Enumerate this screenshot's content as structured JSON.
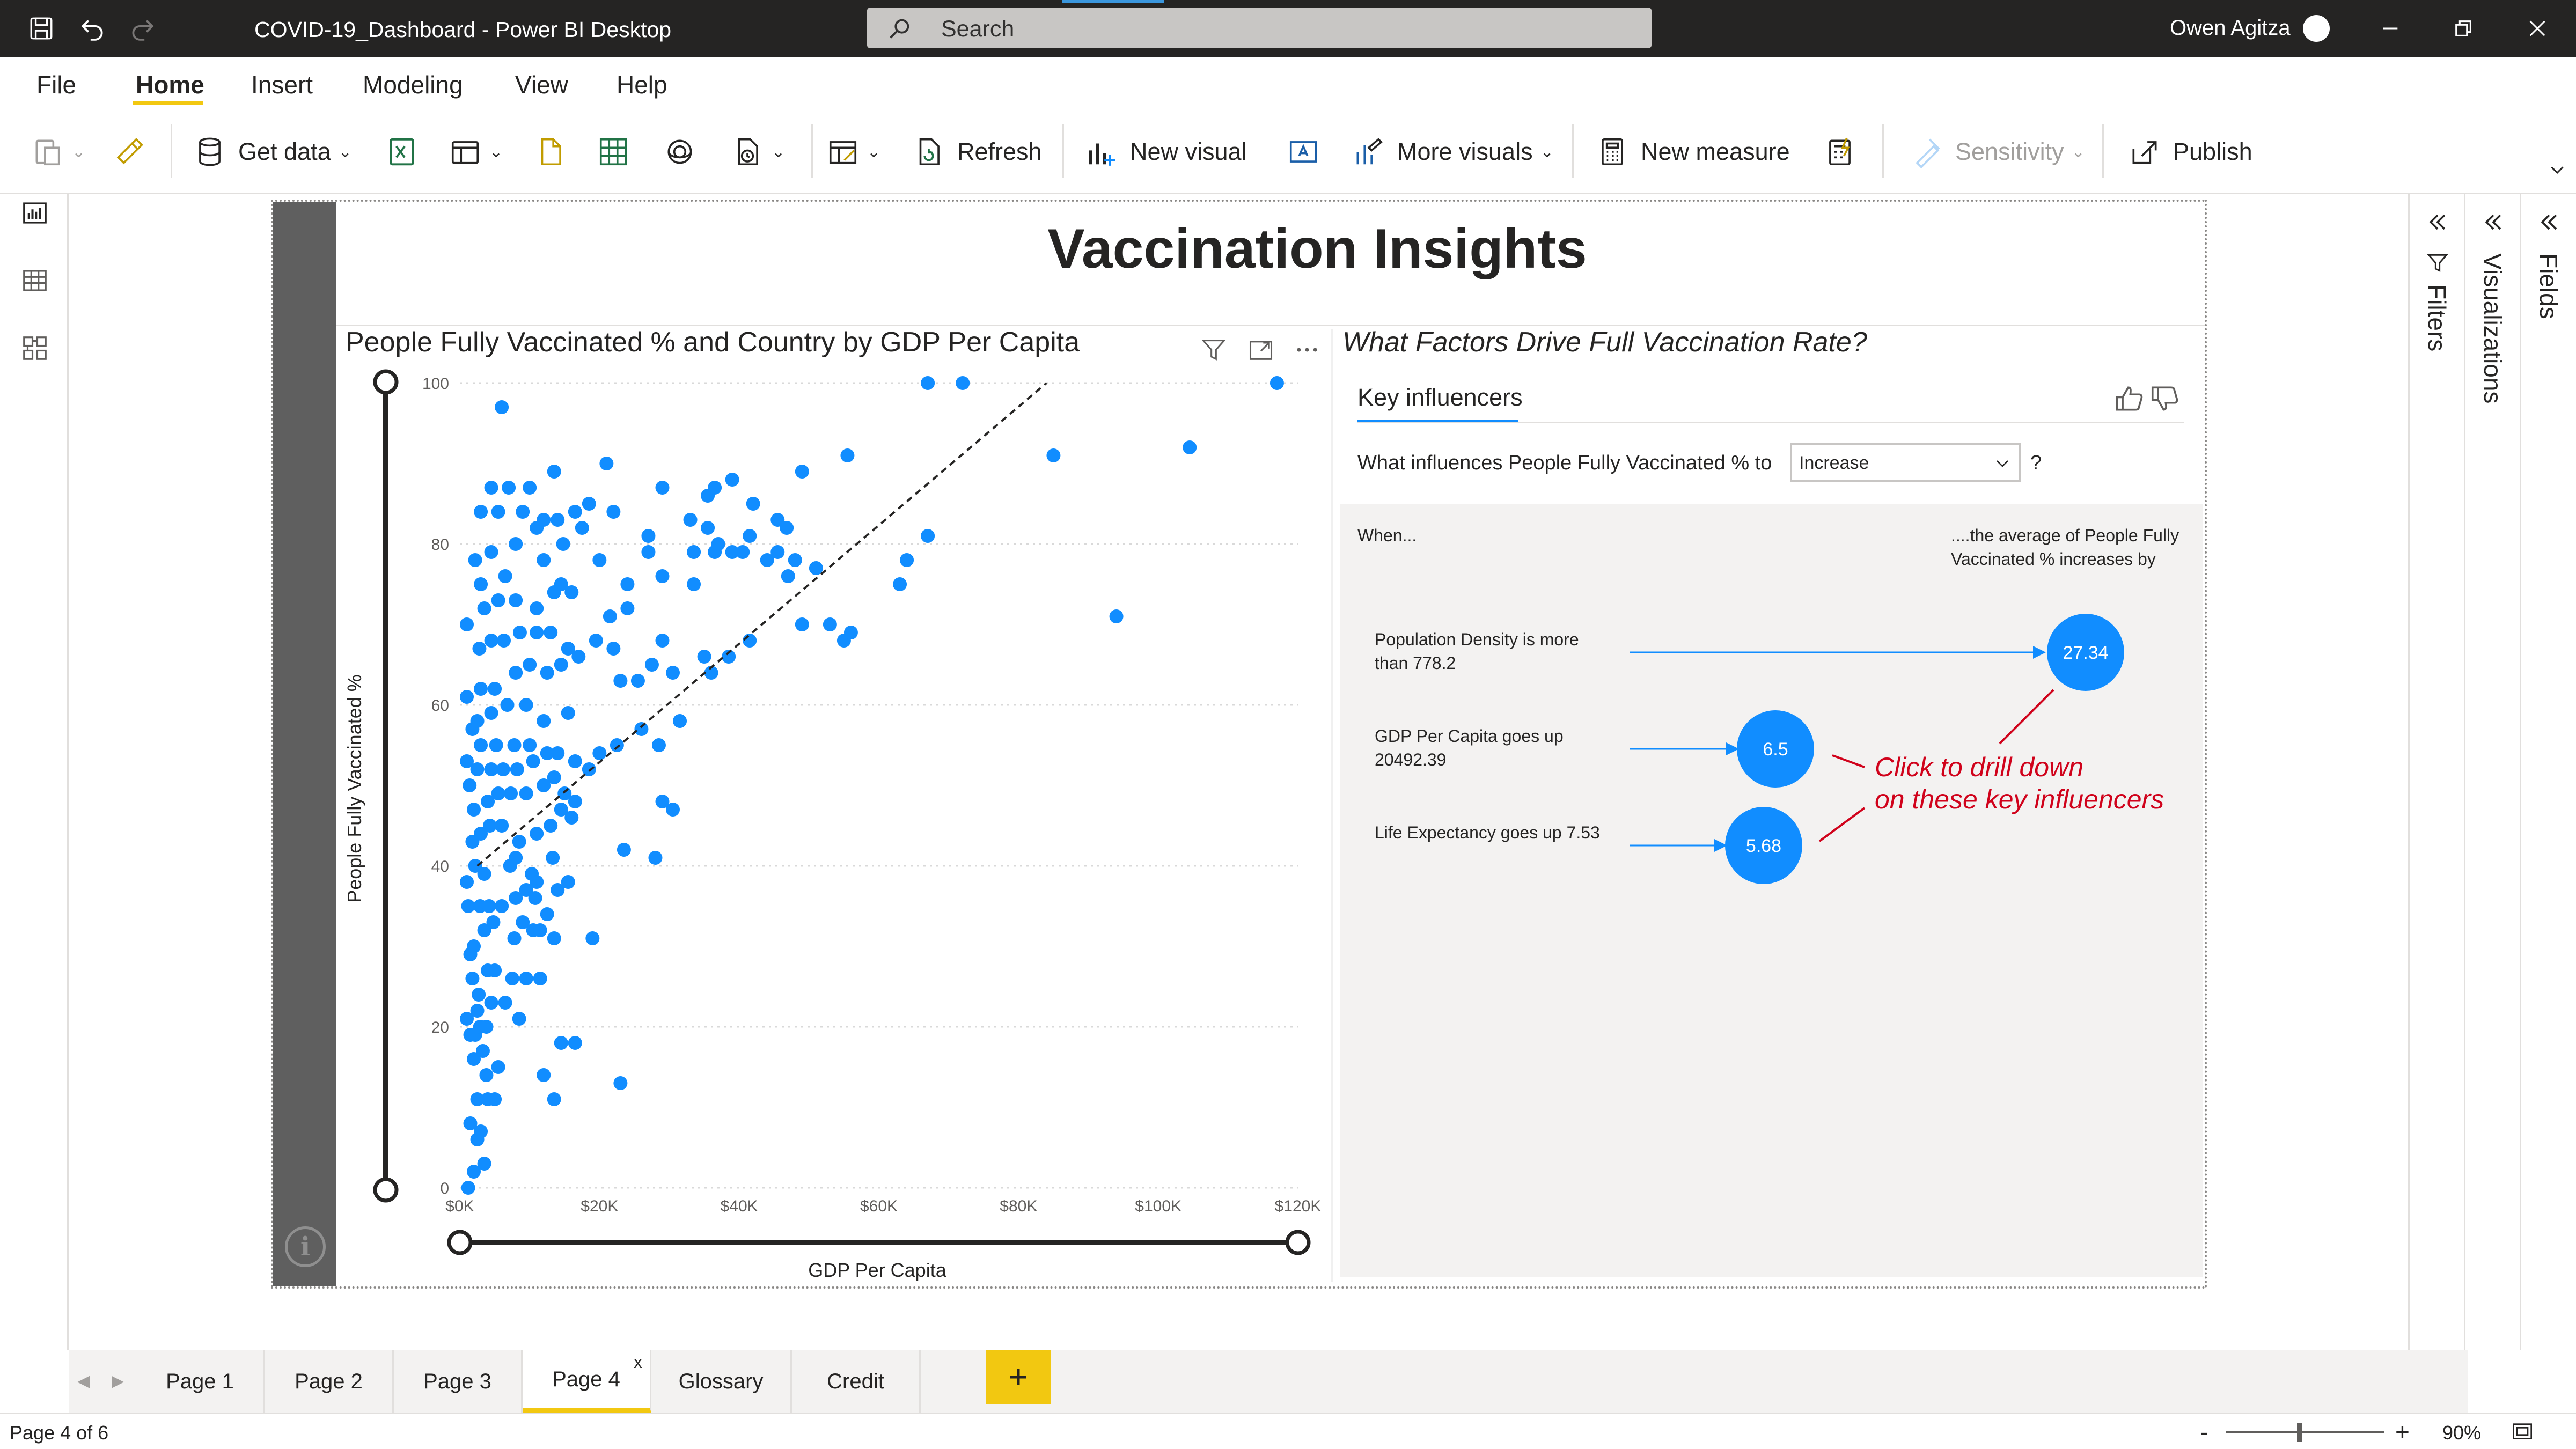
{
  "app": {
    "window_title": "COVID-19_Dashboard - Power BI Desktop",
    "search_placeholder": "Search",
    "user_name": "Owen Agitza"
  },
  "menu": {
    "items": [
      "File",
      "Home",
      "Insert",
      "Modeling",
      "View",
      "Help"
    ],
    "active": "Home"
  },
  "ribbon": {
    "get_data": "Get data",
    "refresh": "Refresh",
    "new_visual": "New visual",
    "more_visuals": "More visuals",
    "new_measure": "New measure",
    "sensitivity": "Sensitivity",
    "publish": "Publish"
  },
  "report": {
    "title": "Vaccination Insights"
  },
  "scatter": {
    "title": "People Fully Vaccinated % and Country by GDP Per Capita"
  },
  "chart_data": {
    "type": "scatter",
    "title": "People Fully Vaccinated % and Country by GDP Per Capita",
    "xlabel": "GDP Per Capita",
    "ylabel": "People Fully Vaccinated %",
    "xlim": [
      0,
      120000
    ],
    "ylim": [
      0,
      100
    ],
    "x_ticks": [
      {
        "value": 0,
        "label": "$0K"
      },
      {
        "value": 20000,
        "label": "$20K"
      },
      {
        "value": 40000,
        "label": "$40K"
      },
      {
        "value": 60000,
        "label": "$60K"
      },
      {
        "value": 80000,
        "label": "$80K"
      },
      {
        "value": 100000,
        "label": "$100K"
      },
      {
        "value": 120000,
        "label": "$120K"
      }
    ],
    "y_ticks": [
      {
        "value": 0,
        "label": "0"
      },
      {
        "value": 20,
        "label": "20"
      },
      {
        "value": 40,
        "label": "40"
      },
      {
        "value": 60,
        "label": "60"
      },
      {
        "value": 80,
        "label": "80"
      },
      {
        "value": 100,
        "label": "100"
      }
    ],
    "grid": true,
    "color": "#118dff",
    "trend_line": {
      "x": [
        2500,
        84000
      ],
      "y": [
        40,
        100
      ]
    },
    "points": [
      [
        1200,
        0
      ],
      [
        2000,
        2
      ],
      [
        3500,
        3
      ],
      [
        2500,
        6
      ],
      [
        3000,
        7
      ],
      [
        1500,
        8
      ],
      [
        2500,
        11
      ],
      [
        4000,
        11
      ],
      [
        5000,
        11
      ],
      [
        3800,
        14
      ],
      [
        5500,
        15
      ],
      [
        2000,
        16
      ],
      [
        3300,
        17
      ],
      [
        1500,
        19
      ],
      [
        2200,
        19
      ],
      [
        2900,
        20
      ],
      [
        3800,
        20
      ],
      [
        1000,
        21
      ],
      [
        8500,
        21
      ],
      [
        12000,
        14
      ],
      [
        13500,
        11
      ],
      [
        14500,
        18
      ],
      [
        16500,
        18
      ],
      [
        23000,
        13
      ],
      [
        2500,
        22
      ],
      [
        4500,
        23
      ],
      [
        6500,
        23
      ],
      [
        2700,
        24
      ],
      [
        1800,
        26
      ],
      [
        4000,
        27
      ],
      [
        5000,
        27
      ],
      [
        7500,
        26
      ],
      [
        9500,
        26
      ],
      [
        11500,
        26
      ],
      [
        1500,
        29
      ],
      [
        2000,
        30
      ],
      [
        3500,
        32
      ],
      [
        4800,
        33
      ],
      [
        1200,
        35
      ],
      [
        2900,
        35
      ],
      [
        4200,
        35
      ],
      [
        6000,
        35
      ],
      [
        7800,
        31
      ],
      [
        9000,
        33
      ],
      [
        10500,
        32
      ],
      [
        11500,
        32
      ],
      [
        13500,
        31
      ],
      [
        19000,
        31
      ],
      [
        8000,
        36
      ],
      [
        9500,
        37
      ],
      [
        10800,
        36
      ],
      [
        12500,
        34
      ],
      [
        14000,
        37
      ],
      [
        1000,
        38
      ],
      [
        2200,
        40
      ],
      [
        3500,
        39
      ],
      [
        7200,
        40
      ],
      [
        8000,
        41
      ],
      [
        10300,
        39
      ],
      [
        11000,
        38
      ],
      [
        13300,
        41
      ],
      [
        15500,
        38
      ],
      [
        23500,
        42
      ],
      [
        28000,
        41
      ],
      [
        1800,
        43
      ],
      [
        3000,
        44
      ],
      [
        4300,
        45
      ],
      [
        6000,
        45
      ],
      [
        8500,
        43
      ],
      [
        11000,
        44
      ],
      [
        13000,
        45
      ],
      [
        14500,
        47
      ],
      [
        16000,
        46
      ],
      [
        29000,
        48
      ],
      [
        30500,
        47
      ],
      [
        2000,
        47
      ],
      [
        4000,
        48
      ],
      [
        5500,
        49
      ],
      [
        7300,
        49
      ],
      [
        9500,
        49
      ],
      [
        12000,
        50
      ],
      [
        15000,
        49
      ],
      [
        16500,
        48
      ],
      [
        1400,
        50
      ],
      [
        2500,
        52
      ],
      [
        4500,
        52
      ],
      [
        6200,
        52
      ],
      [
        8200,
        52
      ],
      [
        10500,
        53
      ],
      [
        13500,
        51
      ],
      [
        1000,
        53
      ],
      [
        3000,
        55
      ],
      [
        5200,
        55
      ],
      [
        7800,
        55
      ],
      [
        10000,
        55
      ],
      [
        12500,
        54
      ],
      [
        14000,
        54
      ],
      [
        16500,
        53
      ],
      [
        18500,
        52
      ],
      [
        20000,
        54
      ],
      [
        22500,
        55
      ],
      [
        26000,
        57
      ],
      [
        28500,
        55
      ],
      [
        31500,
        58
      ],
      [
        1800,
        57
      ],
      [
        2500,
        58
      ],
      [
        4500,
        59
      ],
      [
        6800,
        60
      ],
      [
        9500,
        60
      ],
      [
        12000,
        58
      ],
      [
        15500,
        59
      ],
      [
        1000,
        61
      ],
      [
        3000,
        62
      ],
      [
        5000,
        62
      ],
      [
        8000,
        64
      ],
      [
        10000,
        65
      ],
      [
        12500,
        64
      ],
      [
        14500,
        65
      ],
      [
        23000,
        63
      ],
      [
        25500,
        63
      ],
      [
        27500,
        65
      ],
      [
        30500,
        64
      ],
      [
        36000,
        64
      ],
      [
        38500,
        66
      ],
      [
        41500,
        68
      ],
      [
        2800,
        67
      ],
      [
        4500,
        68
      ],
      [
        6300,
        68
      ],
      [
        8600,
        69
      ],
      [
        11000,
        69
      ],
      [
        13000,
        69
      ],
      [
        15500,
        67
      ],
      [
        17000,
        66
      ],
      [
        19500,
        68
      ],
      [
        22000,
        67
      ],
      [
        29000,
        68
      ],
      [
        35000,
        66
      ],
      [
        49000,
        70
      ],
      [
        55000,
        68
      ],
      [
        56000,
        69
      ],
      [
        53000,
        70
      ],
      [
        94000,
        71
      ],
      [
        1000,
        70
      ],
      [
        3500,
        72
      ],
      [
        5500,
        73
      ],
      [
        8000,
        73
      ],
      [
        11000,
        72
      ],
      [
        13500,
        74
      ],
      [
        16000,
        74
      ],
      [
        21500,
        71
      ],
      [
        24000,
        72
      ],
      [
        3000,
        75
      ],
      [
        6500,
        76
      ],
      [
        14500,
        75
      ],
      [
        24000,
        75
      ],
      [
        29000,
        76
      ],
      [
        33500,
        75
      ],
      [
        2200,
        78
      ],
      [
        4500,
        79
      ],
      [
        8000,
        80
      ],
      [
        12000,
        78
      ],
      [
        14800,
        80
      ],
      [
        20000,
        78
      ],
      [
        27000,
        79
      ],
      [
        33500,
        79
      ],
      [
        36500,
        79
      ],
      [
        39000,
        79
      ],
      [
        40500,
        79
      ],
      [
        44000,
        78
      ],
      [
        45500,
        79
      ],
      [
        47000,
        76
      ],
      [
        37000,
        80
      ],
      [
        41500,
        81
      ],
      [
        48000,
        78
      ],
      [
        51000,
        77
      ],
      [
        63000,
        75
      ],
      [
        64000,
        78
      ],
      [
        67000,
        81
      ],
      [
        11000,
        82
      ],
      [
        14000,
        83
      ],
      [
        17500,
        82
      ],
      [
        27000,
        81
      ],
      [
        33000,
        83
      ],
      [
        3000,
        84
      ],
      [
        5500,
        84
      ],
      [
        9000,
        84
      ],
      [
        12000,
        83
      ],
      [
        16500,
        84
      ],
      [
        18500,
        85
      ],
      [
        22000,
        84
      ],
      [
        35500,
        82
      ],
      [
        45500,
        83
      ],
      [
        46800,
        82
      ],
      [
        42000,
        85
      ],
      [
        35500,
        86
      ],
      [
        36500,
        87
      ],
      [
        29000,
        87
      ],
      [
        4500,
        87
      ],
      [
        7000,
        87
      ],
      [
        10000,
        87
      ],
      [
        13500,
        89
      ],
      [
        21000,
        90
      ],
      [
        39000,
        88
      ],
      [
        49000,
        89
      ],
      [
        55500,
        91
      ],
      [
        85000,
        91
      ],
      [
        104500,
        92
      ],
      [
        6000,
        97
      ],
      [
        67000,
        100
      ],
      [
        72000,
        100
      ],
      [
        117000,
        100
      ]
    ]
  },
  "key_influencers": {
    "title": "What Factors Drive Full Vaccination Rate?",
    "tab_label": "Key influencers",
    "question": "What influences People Fully Vaccinated % to",
    "dropdown_value": "Increase",
    "help": "?",
    "when_label": "When...",
    "result_header": "....the average of People Fully Vaccinated % increases by",
    "factors": [
      {
        "label": "Population Density is more than 778.2",
        "value": "27.34"
      },
      {
        "label": "GDP Per Capita goes up 20492.39",
        "value": "6.5"
      },
      {
        "label": "Life Expectancy goes up 7.53",
        "value": "5.68"
      }
    ],
    "annotation_line1": "Click to drill down",
    "annotation_line2": "on these key influencers"
  },
  "panes": {
    "filters": "Filters",
    "visualizations": "Visualizations",
    "fields": "Fields"
  },
  "pages": {
    "tabs": [
      "Page 1",
      "Page 2",
      "Page 3",
      "Page 4",
      "Glossary",
      "Credit"
    ],
    "active": "Page 4",
    "close_mark": "x"
  },
  "status": {
    "page_indicator": "Page 4 of 6",
    "zoom_minus": "-",
    "zoom_plus": "+",
    "zoom_level": "90%",
    "zoom_fraction": 0.45
  },
  "colors": {
    "accent": "#f2c811",
    "data_blue": "#118dff",
    "annotation_red": "#d0021b",
    "titlebar": "#252423"
  }
}
